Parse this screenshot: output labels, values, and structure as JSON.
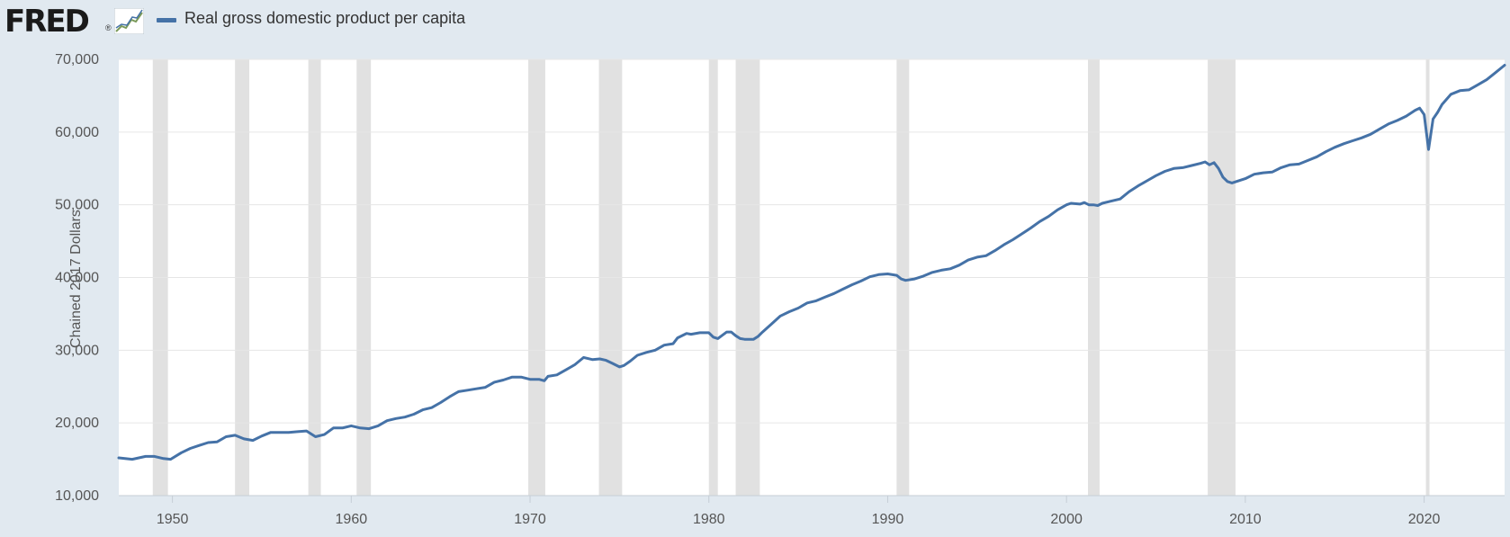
{
  "header": {
    "logo_text": "FRED",
    "logo_registered": "®",
    "legend_label": "Real gross domestic product per capita"
  },
  "colors": {
    "series": "#4572a7",
    "recession": "#e1e1e1",
    "plot_bg": "#ffffff",
    "page_bg": "#e1e9f0",
    "grid": "#e6e6e6"
  },
  "chart_data": {
    "type": "line",
    "title": "",
    "xlabel": "",
    "ylabel": "Chained 2017 Dollars",
    "xlim": [
      1947.0,
      2024.5
    ],
    "ylim": [
      10000,
      70000
    ],
    "x_ticks": [
      1950,
      1960,
      1970,
      1980,
      1990,
      2000,
      2010,
      2020
    ],
    "y_ticks": [
      10000,
      20000,
      30000,
      40000,
      50000,
      60000,
      70000
    ],
    "y_tick_labels": [
      "10,000",
      "20,000",
      "30,000",
      "40,000",
      "50,000",
      "60,000",
      "70,000"
    ],
    "grid": true,
    "legend_placement": "top-left",
    "recessions": [
      [
        1948.9,
        1949.75
      ],
      [
        1953.5,
        1954.3
      ],
      [
        1957.6,
        1958.3
      ],
      [
        1960.3,
        1961.1
      ],
      [
        1969.9,
        1970.85
      ],
      [
        1973.85,
        1975.15
      ],
      [
        1980.0,
        1980.5
      ],
      [
        1981.5,
        1982.85
      ],
      [
        1990.5,
        1991.2
      ],
      [
        2001.2,
        2001.85
      ],
      [
        2007.9,
        2009.45
      ],
      [
        2020.1,
        2020.3
      ]
    ],
    "series": [
      {
        "name": "Real gross domestic product per capita",
        "x": [
          1947.0,
          1947.75,
          1948.5,
          1949.0,
          1949.5,
          1949.9,
          1950.5,
          1951.0,
          1951.5,
          1952.0,
          1952.5,
          1953.0,
          1953.5,
          1954.0,
          1954.5,
          1955.0,
          1955.5,
          1956.0,
          1956.5,
          1957.0,
          1957.5,
          1958.0,
          1958.5,
          1959.0,
          1959.5,
          1960.0,
          1960.5,
          1961.0,
          1961.5,
          1962.0,
          1962.5,
          1963.0,
          1963.5,
          1964.0,
          1964.5,
          1965.0,
          1965.5,
          1966.0,
          1966.5,
          1967.0,
          1967.5,
          1968.0,
          1968.5,
          1969.0,
          1969.5,
          1970.0,
          1970.5,
          1970.8,
          1971.0,
          1971.5,
          1972.0,
          1972.5,
          1973.0,
          1973.5,
          1973.9,
          1974.25,
          1974.6,
          1975.0,
          1975.25,
          1975.6,
          1976.0,
          1976.5,
          1977.0,
          1977.5,
          1978.0,
          1978.25,
          1978.75,
          1979.0,
          1979.5,
          1980.0,
          1980.25,
          1980.5,
          1981.0,
          1981.25,
          1981.5,
          1981.75,
          1982.0,
          1982.5,
          1982.75,
          1983.0,
          1983.5,
          1984.0,
          1984.5,
          1985.0,
          1985.5,
          1986.0,
          1986.5,
          1987.0,
          1987.5,
          1988.0,
          1988.5,
          1989.0,
          1989.5,
          1990.0,
          1990.5,
          1990.75,
          1991.0,
          1991.5,
          1992.0,
          1992.5,
          1993.0,
          1993.5,
          1994.0,
          1994.5,
          1995.0,
          1995.5,
          1996.0,
          1996.5,
          1997.0,
          1997.5,
          1998.0,
          1998.5,
          1999.0,
          1999.5,
          2000.0,
          2000.25,
          2000.75,
          2001.0,
          2001.25,
          2001.5,
          2001.75,
          2002.0,
          2002.5,
          2003.0,
          2003.5,
          2004.0,
          2004.5,
          2005.0,
          2005.5,
          2006.0,
          2006.5,
          2007.0,
          2007.5,
          2007.75,
          2008.0,
          2008.25,
          2008.5,
          2008.75,
          2009.0,
          2009.25,
          2009.5,
          2010.0,
          2010.5,
          2011.0,
          2011.5,
          2012.0,
          2012.5,
          2013.0,
          2013.5,
          2014.0,
          2014.5,
          2015.0,
          2015.5,
          2016.0,
          2016.5,
          2017.0,
          2017.5,
          2018.0,
          2018.5,
          2019.0,
          2019.5,
          2019.75,
          2020.0,
          2020.25,
          2020.5,
          2020.75,
          2021.0,
          2021.5,
          2022.0,
          2022.5,
          2023.0,
          2023.5,
          2024.0,
          2024.5
        ],
        "values": [
          15200,
          15000,
          15400,
          15400,
          15100,
          15000,
          15900,
          16500,
          16900,
          17300,
          17400,
          18100,
          18300,
          17800,
          17600,
          18200,
          18700,
          18700,
          18700,
          18800,
          18900,
          18100,
          18400,
          19300,
          19300,
          19600,
          19300,
          19200,
          19600,
          20300,
          20600,
          20800,
          21200,
          21800,
          22100,
          22800,
          23600,
          24300,
          24500,
          24700,
          24900,
          25600,
          25900,
          26300,
          26300,
          26000,
          26000,
          25800,
          26400,
          26600,
          27300,
          28000,
          29000,
          28700,
          28800,
          28600,
          28200,
          27700,
          27900,
          28500,
          29300,
          29700,
          30000,
          30700,
          30900,
          31700,
          32300,
          32200,
          32400,
          32400,
          31800,
          31600,
          32500,
          32500,
          32000,
          31600,
          31500,
          31500,
          31900,
          32500,
          33600,
          34700,
          35300,
          35800,
          36500,
          36800,
          37300,
          37800,
          38400,
          39000,
          39500,
          40100,
          40400,
          40500,
          40300,
          39800,
          39600,
          39800,
          40200,
          40700,
          41000,
          41200,
          41700,
          42400,
          42800,
          43000,
          43700,
          44500,
          45200,
          46000,
          46800,
          47700,
          48400,
          49300,
          50000,
          50200,
          50100,
          50300,
          50000,
          50000,
          49900,
          50200,
          50500,
          50800,
          51800,
          52600,
          53300,
          54000,
          54600,
          55000,
          55100,
          55400,
          55700,
          55900,
          55500,
          55800,
          55000,
          53800,
          53200,
          53000,
          53200,
          53600,
          54200,
          54400,
          54500,
          55100,
          55500,
          55600,
          56100,
          56600,
          57300,
          57900,
          58400,
          58800,
          59200,
          59700,
          60400,
          61100,
          61600,
          62200,
          63000,
          63300,
          62400,
          57600,
          61800,
          62700,
          63800,
          65200,
          65700,
          65800,
          66500,
          67200,
          68200,
          69200
        ]
      }
    ]
  }
}
